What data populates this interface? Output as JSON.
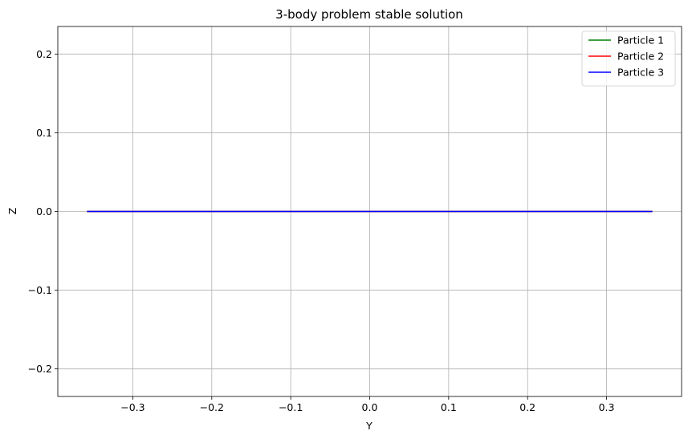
{
  "chart_data": {
    "type": "line",
    "title": "3-body problem stable solution",
    "xlabel": "Y",
    "ylabel": "Z",
    "xlim": [
      -0.395,
      0.395
    ],
    "ylim": [
      -0.235,
      0.235
    ],
    "xticks": [
      -0.3,
      -0.2,
      -0.1,
      0.0,
      0.1,
      0.2,
      0.3
    ],
    "xtick_labels": [
      "−0.3",
      "−0.2",
      "−0.1",
      "0.0",
      "0.1",
      "0.2",
      "0.3"
    ],
    "yticks": [
      -0.2,
      -0.1,
      0.0,
      0.1,
      0.2
    ],
    "ytick_labels": [
      "−0.2",
      "−0.1",
      "0.0",
      "0.1",
      "0.2"
    ],
    "grid": true,
    "legend_position": "top-right",
    "series": [
      {
        "name": "Particle 1",
        "color": "#008000",
        "x": [
          -0.358,
          0.358
        ],
        "y": [
          0.0,
          0.0
        ]
      },
      {
        "name": "Particle 2",
        "color": "#ff0000",
        "x": [
          -0.358,
          0.358
        ],
        "y": [
          0.0,
          0.0
        ]
      },
      {
        "name": "Particle 3",
        "color": "#0000ff",
        "x": [
          -0.358,
          0.358
        ],
        "y": [
          0.0,
          0.0
        ]
      }
    ]
  }
}
